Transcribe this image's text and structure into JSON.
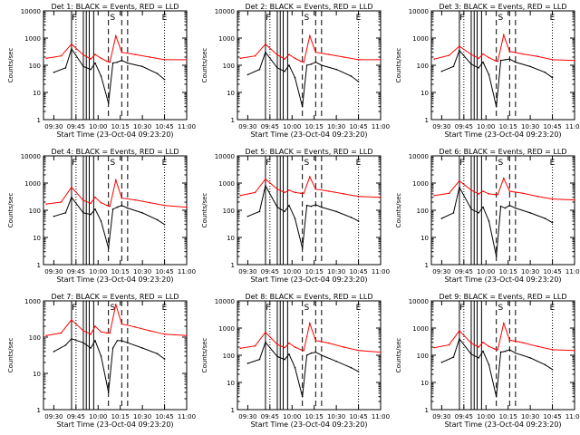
{
  "figure": {
    "xlabel": "Start Time (23-Oct-04 09:23:20)",
    "ylabel": "Counts/sec",
    "xticks": [
      "09:30",
      "09:45",
      "10:00",
      "10:15",
      "10:30",
      "10:45",
      "11:00"
    ],
    "yticks": [
      "1",
      "10",
      "100",
      "1000",
      "10000"
    ],
    "marker_letters": [
      "F",
      "S",
      "E"
    ]
  },
  "colors": {
    "events": "#000000",
    "lld": "#ff0000",
    "axes": "#000000"
  },
  "chart_data": [
    {
      "type": "line",
      "title": "Det 1: BLACK = Events, RED = LLD",
      "xlabel": "Start Time (23-Oct-04 09:23:20)",
      "ylabel": "Counts/sec",
      "yscale": "log",
      "ylim": [
        1,
        10000
      ],
      "xlim": [
        "09:23",
        "11:00"
      ],
      "series": [
        {
          "name": "Events",
          "x": [
            "09:30",
            "09:38",
            "09:42",
            "09:50",
            "09:55",
            "09:58",
            "10:02",
            "10:07",
            "10:10",
            "10:13",
            "10:16",
            "10:20",
            "10:30",
            "10:40",
            "10:45"
          ],
          "y": [
            55,
            80,
            400,
            90,
            70,
            120,
            40,
            4,
            120,
            130,
            150,
            120,
            90,
            50,
            30
          ]
        },
        {
          "name": "LLD",
          "x": [
            "09:25",
            "09:35",
            "09:42",
            "09:50",
            "09:55",
            "09:58",
            "10:02",
            "10:06",
            "10:08",
            "10:12",
            "10:16",
            "10:25",
            "10:35",
            "10:45",
            "11:00"
          ],
          "y": [
            180,
            220,
            600,
            240,
            170,
            250,
            180,
            140,
            130,
            1200,
            300,
            250,
            200,
            160,
            160
          ]
        }
      ]
    },
    {
      "type": "line",
      "title": "Det 2: BLACK = Events, RED = LLD",
      "xlabel": "Start Time (23-Oct-04 09:23:20)",
      "ylabel": "Counts/sec",
      "yscale": "log",
      "ylim": [
        1,
        10000
      ],
      "xlim": [
        "09:23",
        "11:00"
      ],
      "series": [
        {
          "name": "Events",
          "x": [
            "09:30",
            "09:38",
            "09:42",
            "09:50",
            "09:55",
            "09:58",
            "10:02",
            "10:07",
            "10:10",
            "10:13",
            "10:16",
            "10:20",
            "10:30",
            "10:40",
            "10:45"
          ],
          "y": [
            45,
            70,
            300,
            80,
            60,
            100,
            35,
            3,
            100,
            110,
            130,
            100,
            70,
            40,
            25
          ]
        },
        {
          "name": "LLD",
          "x": [
            "09:25",
            "09:35",
            "09:42",
            "09:50",
            "09:55",
            "09:58",
            "10:02",
            "10:06",
            "10:08",
            "10:12",
            "10:16",
            "10:25",
            "10:35",
            "10:45",
            "11:00"
          ],
          "y": [
            180,
            220,
            600,
            240,
            170,
            250,
            180,
            140,
            130,
            1200,
            300,
            250,
            200,
            160,
            160
          ]
        }
      ]
    },
    {
      "type": "line",
      "title": "Det 3: BLACK = Events, RED = LLD",
      "xlabel": "Start Time (23-Oct-04 09:23:20)",
      "ylabel": "Counts/sec",
      "yscale": "log",
      "ylim": [
        1,
        10000
      ],
      "xlim": [
        "09:23",
        "11:00"
      ],
      "series": [
        {
          "name": "Events",
          "x": [
            "09:30",
            "09:38",
            "09:42",
            "09:50",
            "09:55",
            "09:58",
            "10:02",
            "10:07",
            "10:10",
            "10:13",
            "10:16",
            "10:20",
            "10:30",
            "10:40",
            "10:45"
          ],
          "y": [
            60,
            90,
            350,
            110,
            80,
            130,
            45,
            3,
            150,
            160,
            170,
            130,
            90,
            55,
            35
          ]
        },
        {
          "name": "LLD",
          "x": [
            "09:25",
            "09:35",
            "09:42",
            "09:50",
            "09:55",
            "09:58",
            "10:02",
            "10:06",
            "10:08",
            "10:12",
            "10:16",
            "10:25",
            "10:35",
            "10:45",
            "11:00"
          ],
          "y": [
            170,
            230,
            500,
            250,
            180,
            260,
            190,
            150,
            140,
            1300,
            320,
            260,
            210,
            160,
            150
          ]
        }
      ]
    },
    {
      "type": "line",
      "title": "Det 4: BLACK = Events, RED = LLD",
      "xlabel": "Start Time (23-Oct-04 09:23:20)",
      "ylabel": "Counts/sec",
      "yscale": "log",
      "ylim": [
        1,
        10000
      ],
      "xlim": [
        "09:23",
        "11:00"
      ],
      "series": [
        {
          "name": "Events",
          "x": [
            "09:30",
            "09:38",
            "09:42",
            "09:50",
            "09:55",
            "09:58",
            "10:02",
            "10:07",
            "10:10",
            "10:13",
            "10:16",
            "10:20",
            "10:30",
            "10:40",
            "10:45"
          ],
          "y": [
            60,
            80,
            300,
            80,
            70,
            110,
            40,
            4,
            110,
            130,
            150,
            120,
            80,
            45,
            30
          ]
        },
        {
          "name": "LLD",
          "x": [
            "09:25",
            "09:35",
            "09:42",
            "09:50",
            "09:55",
            "09:58",
            "10:02",
            "10:06",
            "10:08",
            "10:12",
            "10:16",
            "10:25",
            "10:35",
            "10:45",
            "11:00"
          ],
          "y": [
            170,
            200,
            700,
            230,
            180,
            300,
            190,
            150,
            140,
            1300,
            280,
            240,
            190,
            150,
            130
          ]
        }
      ]
    },
    {
      "type": "line",
      "title": "Det 5: BLACK = Events, RED = LLD",
      "xlabel": "Start Time (23-Oct-04 09:23:20)",
      "ylabel": "Counts/sec",
      "yscale": "log",
      "ylim": [
        1,
        10000
      ],
      "xlim": [
        "09:23",
        "11:00"
      ],
      "series": [
        {
          "name": "Events",
          "x": [
            "09:30",
            "09:38",
            "09:42",
            "09:50",
            "09:55",
            "09:58",
            "10:02",
            "10:07",
            "10:10",
            "10:13",
            "10:16",
            "10:20",
            "10:30",
            "10:40",
            "10:45"
          ],
          "y": [
            60,
            90,
            800,
            130,
            90,
            150,
            50,
            4,
            150,
            140,
            160,
            130,
            90,
            55,
            40
          ]
        },
        {
          "name": "LLD",
          "x": [
            "09:25",
            "09:35",
            "09:42",
            "09:50",
            "09:55",
            "09:58",
            "10:02",
            "10:06",
            "10:08",
            "10:12",
            "10:16",
            "10:25",
            "10:35",
            "10:45",
            "11:00"
          ],
          "y": [
            350,
            450,
            1400,
            600,
            450,
            550,
            450,
            420,
            420,
            1700,
            600,
            500,
            400,
            320,
            300
          ]
        }
      ]
    },
    {
      "type": "line",
      "title": "Det 6: BLACK = Events, RED = LLD",
      "xlabel": "Start Time (23-Oct-04 09:23:20)",
      "ylabel": "Counts/sec",
      "yscale": "log",
      "ylim": [
        1,
        10000
      ],
      "xlim": [
        "09:23",
        "11:00"
      ],
      "series": [
        {
          "name": "Events",
          "x": [
            "09:30",
            "09:38",
            "09:42",
            "09:50",
            "09:55",
            "09:58",
            "10:02",
            "10:07",
            "10:10",
            "10:13",
            "10:16",
            "10:20",
            "10:30",
            "10:40",
            "10:45"
          ],
          "y": [
            50,
            80,
            700,
            110,
            80,
            130,
            40,
            2,
            140,
            120,
            150,
            120,
            80,
            50,
            35
          ]
        },
        {
          "name": "LLD",
          "x": [
            "09:25",
            "09:35",
            "09:42",
            "09:50",
            "09:55",
            "09:58",
            "10:02",
            "10:06",
            "10:08",
            "10:12",
            "10:16",
            "10:25",
            "10:35",
            "10:45",
            "11:00"
          ],
          "y": [
            350,
            420,
            1200,
            550,
            400,
            500,
            400,
            380,
            380,
            1500,
            500,
            420,
            320,
            260,
            240
          ]
        }
      ]
    },
    {
      "type": "line",
      "title": "Det 7: BLACK = Events, RED = LLD",
      "xlabel": "Start Time (23-Oct-04 09:23:20)",
      "ylabel": "Counts/sec",
      "yscale": "log",
      "ylim": [
        1,
        1000
      ],
      "xlim": [
        "09:23",
        "11:00"
      ],
      "series": [
        {
          "name": "Events",
          "x": [
            "09:30",
            "09:38",
            "09:42",
            "09:50",
            "09:55",
            "09:58",
            "10:02",
            "10:07",
            "10:10",
            "10:13",
            "10:16",
            "10:20",
            "10:30",
            "10:40",
            "10:45"
          ],
          "y": [
            40,
            60,
            90,
            70,
            50,
            80,
            30,
            3,
            50,
            80,
            80,
            70,
            50,
            35,
            25
          ]
        },
        {
          "name": "LLD",
          "x": [
            "09:25",
            "09:35",
            "09:42",
            "09:50",
            "09:55",
            "09:58",
            "10:02",
            "10:06",
            "10:08",
            "10:12",
            "10:16",
            "10:25",
            "10:35",
            "10:45",
            "11:00"
          ],
          "y": [
            110,
            130,
            300,
            150,
            120,
            200,
            140,
            130,
            130,
            800,
            230,
            190,
            150,
            120,
            110
          ]
        }
      ]
    },
    {
      "type": "line",
      "title": "Det 8: BLACK = Events, RED = LLD",
      "xlabel": "Start Time (23-Oct-04 09:23:20)",
      "ylabel": "Counts/sec",
      "yscale": "log",
      "ylim": [
        1,
        10000
      ],
      "xlim": [
        "09:23",
        "11:00"
      ],
      "series": [
        {
          "name": "Events",
          "x": [
            "09:30",
            "09:38",
            "09:42",
            "09:50",
            "09:55",
            "09:58",
            "10:02",
            "10:07",
            "10:10",
            "10:13",
            "10:16",
            "10:20",
            "10:30",
            "10:40",
            "10:45"
          ],
          "y": [
            50,
            70,
            300,
            90,
            70,
            110,
            35,
            3,
            100,
            120,
            130,
            100,
            60,
            35,
            25
          ]
        },
        {
          "name": "LLD",
          "x": [
            "09:25",
            "09:35",
            "09:42",
            "09:50",
            "09:55",
            "09:58",
            "10:02",
            "10:06",
            "10:08",
            "10:12",
            "10:16",
            "10:25",
            "10:35",
            "10:45",
            "11:00"
          ],
          "y": [
            180,
            220,
            700,
            250,
            190,
            280,
            200,
            160,
            150,
            1500,
            350,
            280,
            200,
            150,
            130
          ]
        }
      ]
    },
    {
      "type": "line",
      "title": "Det 9: BLACK = Events, RED = LLD",
      "xlabel": "Start Time (23-Oct-04 09:23:20)",
      "ylabel": "Counts/sec",
      "yscale": "log",
      "ylim": [
        1,
        10000
      ],
      "xlim": [
        "09:23",
        "11:00"
      ],
      "series": [
        {
          "name": "Events",
          "x": [
            "09:30",
            "09:38",
            "09:42",
            "09:50",
            "09:55",
            "09:58",
            "10:02",
            "10:07",
            "10:10",
            "10:13",
            "10:16",
            "10:20",
            "10:30",
            "10:40",
            "10:45"
          ],
          "y": [
            55,
            85,
            400,
            110,
            80,
            140,
            45,
            3,
            130,
            140,
            160,
            120,
            80,
            45,
            30
          ]
        },
        {
          "name": "LLD",
          "x": [
            "09:25",
            "09:35",
            "09:42",
            "09:50",
            "09:55",
            "09:58",
            "10:02",
            "10:06",
            "10:08",
            "10:12",
            "10:16",
            "10:25",
            "10:35",
            "10:45",
            "11:00"
          ],
          "y": [
            190,
            240,
            800,
            280,
            200,
            300,
            210,
            170,
            160,
            1500,
            360,
            290,
            210,
            160,
            150
          ]
        }
      ]
    }
  ]
}
